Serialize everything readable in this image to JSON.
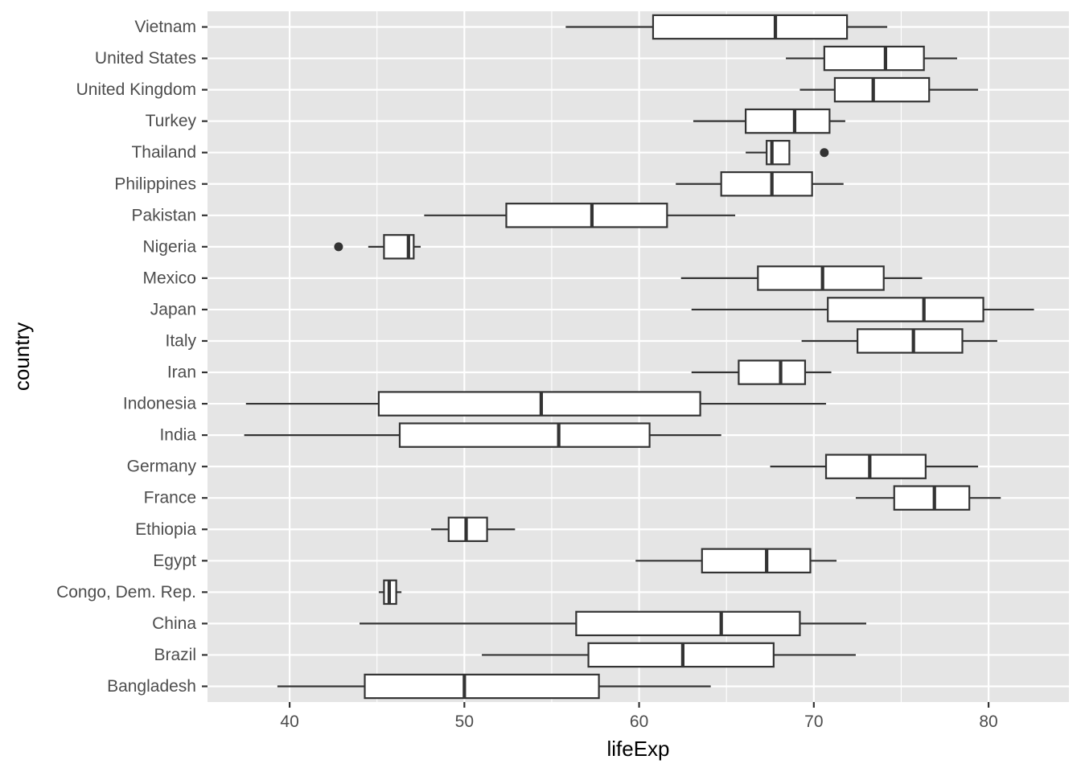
{
  "chart_data": {
    "type": "boxplot",
    "orientation": "horizontal",
    "xlabel": "lifeExp",
    "ylabel": "country",
    "xlim": [
      35.3,
      84.6
    ],
    "xticks": [
      40,
      50,
      60,
      70,
      80
    ],
    "grid": true,
    "legend": "none",
    "colors": {
      "panel": "#e5e5e5",
      "grid": "#ffffff",
      "box_fill": "#ffffff",
      "box_stroke": "#333333",
      "outlier": "#333333",
      "tick_text": "#4d4d4d",
      "title_text": "#000000"
    },
    "categories": [
      "Bangladesh",
      "Brazil",
      "China",
      "Congo, Dem. Rep.",
      "Egypt",
      "Ethiopia",
      "France",
      "Germany",
      "India",
      "Indonesia",
      "Iran",
      "Italy",
      "Japan",
      "Mexico",
      "Nigeria",
      "Pakistan",
      "Philippines",
      "Thailand",
      "Turkey",
      "United Kingdom",
      "United States",
      "Vietnam"
    ],
    "boxes": [
      {
        "country": "Bangladesh",
        "min": 39.3,
        "q1": 44.3,
        "median": 50.0,
        "q3": 57.7,
        "max": 64.1,
        "outliers": []
      },
      {
        "country": "Brazil",
        "min": 51.0,
        "q1": 57.1,
        "median": 62.5,
        "q3": 67.7,
        "max": 72.4,
        "outliers": []
      },
      {
        "country": "China",
        "min": 44.0,
        "q1": 56.4,
        "median": 64.7,
        "q3": 69.2,
        "max": 73.0,
        "outliers": []
      },
      {
        "country": "Congo, Dem. Rep.",
        "min": 45.1,
        "q1": 45.4,
        "median": 45.7,
        "q3": 46.1,
        "max": 46.4,
        "outliers": []
      },
      {
        "country": "Egypt",
        "min": 59.8,
        "q1": 63.6,
        "median": 67.3,
        "q3": 69.8,
        "max": 71.3,
        "outliers": []
      },
      {
        "country": "Ethiopia",
        "min": 48.1,
        "q1": 49.1,
        "median": 50.1,
        "q3": 51.3,
        "max": 52.9,
        "outliers": []
      },
      {
        "country": "France",
        "min": 72.4,
        "q1": 74.6,
        "median": 76.9,
        "q3": 78.9,
        "max": 80.7,
        "outliers": []
      },
      {
        "country": "Germany",
        "min": 67.5,
        "q1": 70.7,
        "median": 73.2,
        "q3": 76.4,
        "max": 79.4,
        "outliers": []
      },
      {
        "country": "India",
        "min": 37.4,
        "q1": 46.3,
        "median": 55.4,
        "q3": 60.6,
        "max": 64.7,
        "outliers": []
      },
      {
        "country": "Indonesia",
        "min": 37.5,
        "q1": 45.1,
        "median": 54.4,
        "q3": 63.5,
        "max": 70.7,
        "outliers": []
      },
      {
        "country": "Iran",
        "min": 63.0,
        "q1": 65.7,
        "median": 68.1,
        "q3": 69.5,
        "max": 71.0,
        "outliers": []
      },
      {
        "country": "Italy",
        "min": 69.3,
        "q1": 72.5,
        "median": 75.7,
        "q3": 78.5,
        "max": 80.5,
        "outliers": []
      },
      {
        "country": "Japan",
        "min": 63.0,
        "q1": 70.8,
        "median": 76.3,
        "q3": 79.7,
        "max": 82.6,
        "outliers": []
      },
      {
        "country": "Mexico",
        "min": 62.4,
        "q1": 66.8,
        "median": 70.5,
        "q3": 74.0,
        "max": 76.2,
        "outliers": []
      },
      {
        "country": "Nigeria",
        "min": 44.5,
        "q1": 45.4,
        "median": 46.8,
        "q3": 47.1,
        "max": 47.5,
        "outliers": [
          42.8
        ]
      },
      {
        "country": "Pakistan",
        "min": 47.7,
        "q1": 52.4,
        "median": 57.3,
        "q3": 61.6,
        "max": 65.5,
        "outliers": []
      },
      {
        "country": "Philippines",
        "min": 62.1,
        "q1": 64.7,
        "median": 67.6,
        "q3": 69.9,
        "max": 71.7,
        "outliers": []
      },
      {
        "country": "Thailand",
        "min": 66.1,
        "q1": 67.3,
        "median": 67.6,
        "q3": 68.6,
        "max": 68.6,
        "outliers": [
          70.6
        ]
      },
      {
        "country": "Turkey",
        "min": 63.1,
        "q1": 66.1,
        "median": 68.9,
        "q3": 70.9,
        "max": 71.8,
        "outliers": []
      },
      {
        "country": "United Kingdom",
        "min": 69.2,
        "q1": 71.2,
        "median": 73.4,
        "q3": 76.6,
        "max": 79.4,
        "outliers": []
      },
      {
        "country": "United States",
        "min": 68.4,
        "q1": 70.6,
        "median": 74.1,
        "q3": 76.3,
        "max": 78.2,
        "outliers": []
      },
      {
        "country": "Vietnam",
        "min": 55.8,
        "q1": 60.8,
        "median": 67.8,
        "q3": 71.9,
        "max": 74.2,
        "outliers": []
      }
    ]
  }
}
